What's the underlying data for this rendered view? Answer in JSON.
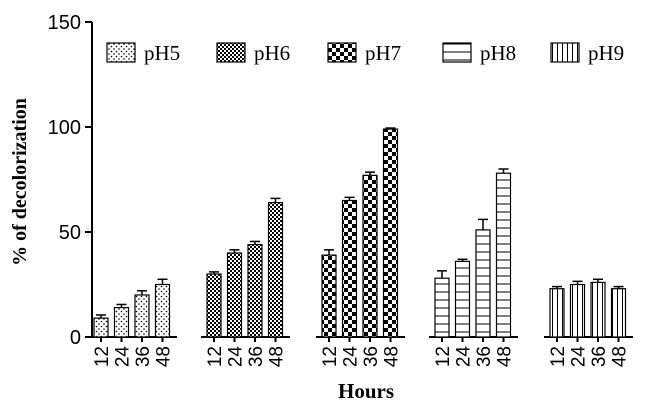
{
  "chart_data": {
    "type": "bar",
    "xlabel": "Hours",
    "ylabel": "% of decolorization",
    "ylim": [
      0,
      150
    ],
    "yticks": [
      "0",
      "50",
      "100",
      "150"
    ],
    "categories": [
      "12",
      "24",
      "36",
      "48"
    ],
    "series": [
      {
        "name": "pH5",
        "pattern": "dots",
        "values": [
          9,
          14,
          20,
          25
        ],
        "errors": [
          1.5,
          1.5,
          2,
          2.5
        ]
      },
      {
        "name": "pH6",
        "pattern": "small-check",
        "values": [
          30,
          40,
          44,
          64
        ],
        "errors": [
          1,
          1.5,
          1.5,
          2
        ]
      },
      {
        "name": "pH7",
        "pattern": "large-check",
        "values": [
          39,
          65,
          77,
          99
        ],
        "errors": [
          2.5,
          1.5,
          1.5,
          0.5
        ]
      },
      {
        "name": "pH8",
        "pattern": "horizontal-lines",
        "values": [
          28,
          36,
          51,
          78
        ],
        "errors": [
          3.5,
          1,
          5,
          2
        ]
      },
      {
        "name": "pH9",
        "pattern": "vertical-lines",
        "values": [
          23,
          25,
          26,
          23
        ],
        "errors": [
          1,
          1.5,
          1.5,
          1
        ]
      }
    ],
    "legend_position": "top",
    "grid": false
  }
}
